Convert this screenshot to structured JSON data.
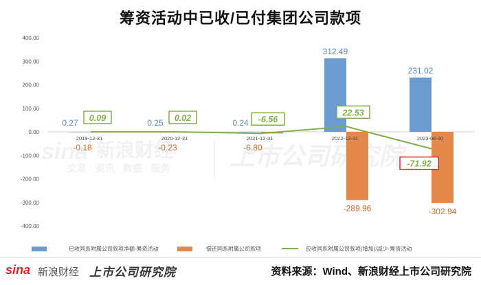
{
  "chart_data": {
    "type": "bar",
    "title": "筹资活动中已收/已付集团公司款项",
    "categories": [
      "2019-12-31",
      "2020-12-31",
      "2021-12-31",
      "2022-12-31",
      "2023-06-30"
    ],
    "ylim": [
      -400,
      400
    ],
    "yticks": [
      "400.00",
      "300.00",
      "200.00",
      "100.00",
      "0.00",
      "-100.00",
      "-200.00",
      "-300.00",
      "-400.00"
    ],
    "series": [
      {
        "name": "已收同系附属公司款项净额-筹资活动",
        "kind": "bar",
        "color": "#6b9bd1",
        "values": [
          0.27,
          0.25,
          0.24,
          312.49,
          231.02
        ],
        "labels": [
          "0.27",
          "0.25",
          "0.24",
          "312.49",
          "231.02"
        ]
      },
      {
        "name": "偿还同系附属公司款项",
        "kind": "bar",
        "color": "#e4874a",
        "values": [
          -0.18,
          -0.23,
          -6.8,
          -289.96,
          -302.94
        ],
        "labels": [
          "-0.18",
          "-0.23",
          "-6.80",
          "-289.96",
          "-302.94"
        ]
      },
      {
        "name": "应收同系附属公司款项(增加)/减少-筹资活动",
        "kind": "line",
        "color": "#7fb04a",
        "values": [
          0.09,
          0.02,
          -6.56,
          22.53,
          -71.92
        ],
        "labels": [
          "0.09",
          "0.02",
          "-6.56",
          "22.53",
          "-71.92"
        ]
      }
    ],
    "grid": false,
    "legend": "bottom"
  },
  "watermark": {
    "sina": "sina",
    "cn": "新浪财经",
    "sub": "交易 · 资讯 · 数据 · 服务",
    "brand": "上市公司研究院"
  },
  "footer": {
    "logo_sina": "sina",
    "logo_cn": "新浪财经",
    "logo_brand": "上市公司研究院",
    "source": "资料来源：Wind、新浪财经上市公司研究院"
  }
}
